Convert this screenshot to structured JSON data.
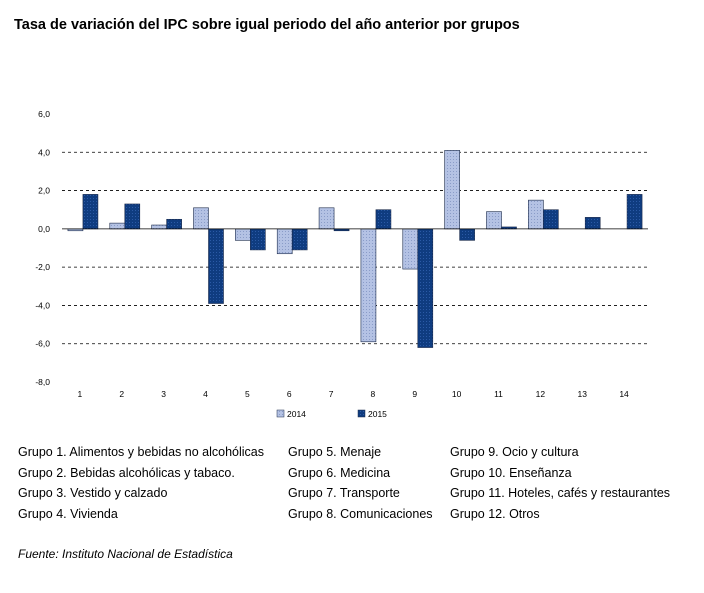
{
  "title": "Tasa de variación del IPC sobre igual periodo del año anterior por grupos",
  "chart_data": {
    "type": "bar",
    "categories": [
      "1",
      "2",
      "3",
      "4",
      "5",
      "6",
      "7",
      "8",
      "9",
      "10",
      "11",
      "12",
      "13",
      "14"
    ],
    "series": [
      {
        "name": "2014",
        "color": "#b4c2e4",
        "values": [
          -0.1,
          0.3,
          0.2,
          1.1,
          -0.6,
          -1.3,
          1.1,
          -5.9,
          -2.1,
          4.1,
          0.9,
          1.5,
          null,
          null
        ]
      },
      {
        "name": "2015",
        "color": "#0f3c80",
        "values": [
          1.8,
          1.3,
          0.5,
          -3.9,
          -1.1,
          -1.1,
          -0.1,
          1.0,
          -6.2,
          -0.6,
          0.1,
          1.0,
          0.6,
          1.8
        ]
      }
    ],
    "ylim": [
      -8,
      6
    ],
    "yticks": [
      "6,0",
      "4,0",
      "2,0",
      "0,0",
      "-2,0",
      "-4,0",
      "-6,0",
      "-8,0"
    ],
    "grid": true,
    "legend": "bottom"
  },
  "groups": [
    [
      "Grupo 1. Alimentos y bebidas no alcohólicas",
      "Grupo 2. Bebidas alcohólicas y  tabaco.",
      "Grupo 3. Vestido y calzado",
      "Grupo 4. Vivienda"
    ],
    [
      "Grupo 5. Menaje",
      "Grupo 6. Medicina",
      "Grupo 7. Transporte",
      "Grupo 8. Comunicaciones"
    ],
    [
      "Grupo 9. Ocio y cultura",
      "Grupo 10. Enseñanza",
      "Grupo 11. Hoteles, cafés y restaurantes",
      "Grupo 12. Otros"
    ]
  ],
  "source": "Fuente: Instituto Nacional de Estadística"
}
